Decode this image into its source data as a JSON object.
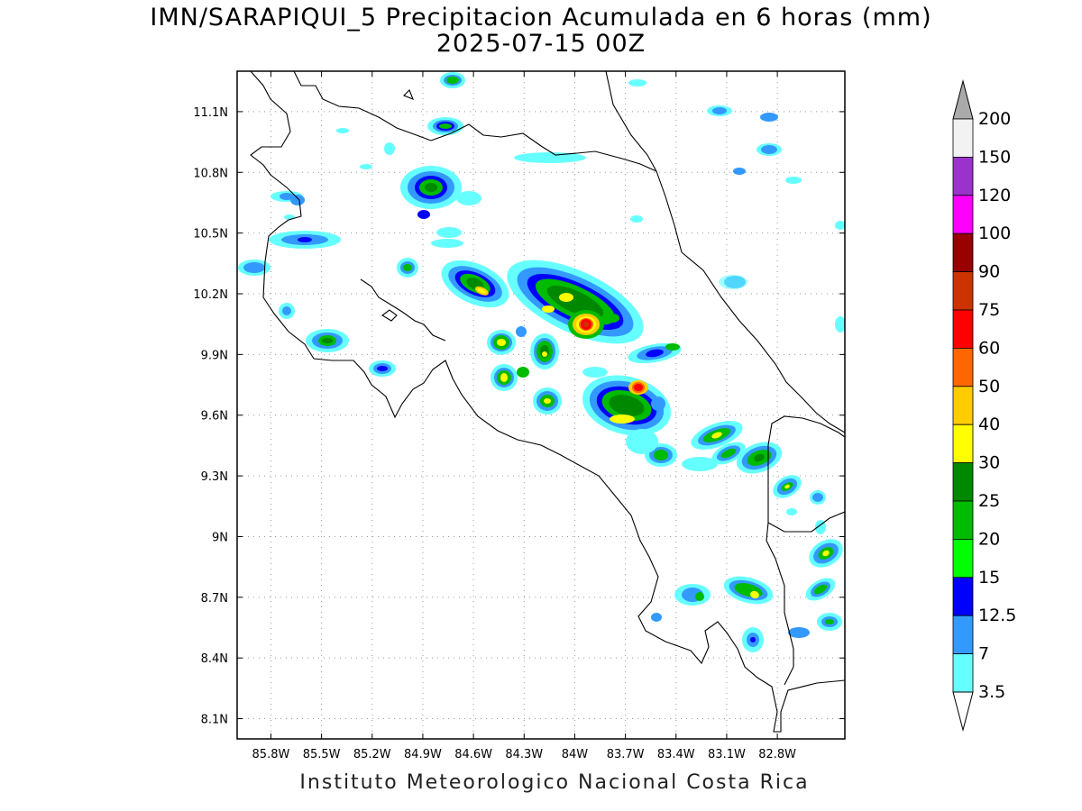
{
  "title_line1": "IMN/SARAPIQUI_5 Precipitacion Acumulada en 6 horas (mm)",
  "title_line2": "2025-07-15 00Z",
  "footer": "Instituto Meteorologico Nacional Costa Rica",
  "map": {
    "lon_range": [
      -86.0,
      -82.4
    ],
    "lat_range": [
      8.0,
      11.3
    ],
    "lon_ticks": [
      "85.8W",
      "85.5W",
      "85.2W",
      "84.9W",
      "84.6W",
      "84.3W",
      "84W",
      "83.7W",
      "83.4W",
      "83.1W",
      "82.8W"
    ],
    "lat_ticks": [
      "11.1N",
      "10.8N",
      "10.5N",
      "10.2N",
      "9.9N",
      "9.6N",
      "9.3N",
      "9N",
      "8.7N",
      "8.4N",
      "8.1N"
    ],
    "grid": true
  },
  "colorbar": {
    "levels": [
      "200",
      "150",
      "120",
      "100",
      "90",
      "75",
      "60",
      "50",
      "40",
      "30",
      "25",
      "20",
      "15",
      "12.5",
      "7",
      "3.5"
    ],
    "colors": [
      "#f2f2f2",
      "#9933cc",
      "#ff00ff",
      "#990000",
      "#cc3300",
      "#ff0000",
      "#ff6600",
      "#ffcc00",
      "#ffff00",
      "#008800",
      "#00bb00",
      "#00ff00",
      "#0000ff",
      "#3399ff",
      "#66ffff"
    ],
    "top_arrow_color": "#aaaaaa",
    "bottom_arrow_color": "#ffffff"
  }
}
